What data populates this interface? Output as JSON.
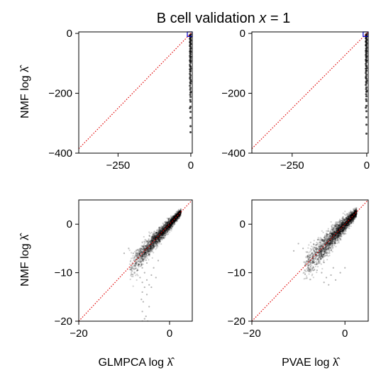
{
  "figure": {
    "title_prefix": "B cell validation ",
    "title_var": "x",
    "title_suffix": " = 1"
  },
  "chart_data": [
    {
      "type": "scatter",
      "panel": "top-left",
      "xlabel": "",
      "ylabel": "NMF log λ̂",
      "xlim": [
        -385,
        5
      ],
      "ylim": [
        -400,
        5
      ],
      "xticks": [
        -250,
        0
      ],
      "xtick_labels": [
        "−250",
        "0"
      ],
      "yticks": [
        0,
        -200,
        -400
      ],
      "ytick_labels": [
        "0",
        "−200",
        "−400"
      ],
      "diagonal": true,
      "inset_box": {
        "x": [
          -12,
          5
        ],
        "y": [
          -10,
          5
        ]
      },
      "points": [
        [
          -1,
          -10
        ],
        [
          -1,
          -20
        ],
        [
          -1,
          -32
        ],
        [
          -1,
          -45
        ],
        [
          -1,
          -58
        ],
        [
          -1,
          -70
        ],
        [
          -1,
          -85
        ],
        [
          -1,
          -98
        ],
        [
          -1,
          -112
        ],
        [
          -1,
          -125
        ],
        [
          -1,
          -140
        ],
        [
          -1,
          -155
        ],
        [
          -1,
          -168
        ],
        [
          -1,
          -182
        ],
        [
          -1,
          -198
        ],
        [
          -1,
          -212
        ],
        [
          -1,
          -228
        ],
        [
          -1,
          -245
        ],
        [
          -1,
          -262
        ],
        [
          -1,
          -282
        ],
        [
          -1,
          -310
        ],
        [
          -1,
          -330
        ],
        [
          -2,
          -5
        ],
        [
          -2,
          -15
        ],
        [
          -2,
          -26
        ],
        [
          -2,
          -38
        ],
        [
          -2,
          -52
        ],
        [
          -2,
          -66
        ],
        [
          -2,
          -80
        ],
        [
          -2,
          -94
        ],
        [
          -2,
          -110
        ],
        [
          -2,
          -128
        ],
        [
          -2,
          -146
        ],
        [
          -2,
          -164
        ],
        [
          -2,
          -188
        ],
        [
          -2,
          -205
        ],
        [
          -2,
          -222
        ],
        [
          -3,
          -8
        ],
        [
          -3,
          -18
        ],
        [
          -3,
          -30
        ],
        [
          -3,
          -42
        ],
        [
          -3,
          -60
        ],
        [
          -3,
          -75
        ],
        [
          -3,
          -90
        ],
        [
          -3,
          -105
        ],
        [
          -3,
          -120
        ],
        [
          -3,
          -135
        ],
        [
          -3,
          -150
        ],
        [
          -3,
          -175
        ],
        [
          -3,
          -250
        ],
        [
          0,
          -3
        ],
        [
          0,
          -12
        ],
        [
          0,
          -24
        ],
        [
          0,
          -36
        ],
        [
          0,
          -50
        ],
        [
          0,
          -62
        ],
        [
          0,
          -78
        ],
        [
          0,
          -92
        ],
        [
          0,
          -118
        ],
        [
          0,
          -160
        ],
        [
          0,
          -195
        ]
      ]
    },
    {
      "type": "scatter",
      "panel": "top-right",
      "xlabel": "",
      "ylabel": "",
      "xlim": [
        -385,
        5
      ],
      "ylim": [
        -400,
        5
      ],
      "xticks": [
        -250,
        0
      ],
      "xtick_labels": [
        "−250",
        "0"
      ],
      "yticks": [
        0,
        -200,
        -400
      ],
      "ytick_labels": [
        "0",
        "−200",
        "−400"
      ],
      "diagonal": true,
      "inset_box": {
        "x": [
          -12,
          5
        ],
        "y": [
          -10,
          5
        ]
      },
      "points": [
        [
          -1,
          -8
        ],
        [
          -1,
          -18
        ],
        [
          -1,
          -30
        ],
        [
          -1,
          -42
        ],
        [
          -1,
          -55
        ],
        [
          -1,
          -68
        ],
        [
          -1,
          -82
        ],
        [
          -1,
          -96
        ],
        [
          -1,
          -110
        ],
        [
          -1,
          -124
        ],
        [
          -1,
          -138
        ],
        [
          -1,
          -152
        ],
        [
          -1,
          -166
        ],
        [
          -1,
          -180
        ],
        [
          -1,
          -195
        ],
        [
          -1,
          -210
        ],
        [
          -1,
          -226
        ],
        [
          -1,
          -242
        ],
        [
          -1,
          -260
        ],
        [
          -1,
          -280
        ],
        [
          -1,
          -305
        ],
        [
          -1,
          -335
        ],
        [
          -2,
          -4
        ],
        [
          -2,
          -14
        ],
        [
          -2,
          -25
        ],
        [
          -2,
          -37
        ],
        [
          -2,
          -50
        ],
        [
          -2,
          -64
        ],
        [
          -2,
          -78
        ],
        [
          -2,
          -92
        ],
        [
          -2,
          -108
        ],
        [
          -2,
          -126
        ],
        [
          -2,
          -144
        ],
        [
          -2,
          -162
        ],
        [
          -2,
          -186
        ],
        [
          -2,
          -203
        ],
        [
          -2,
          -220
        ],
        [
          -3,
          -6
        ],
        [
          -3,
          -16
        ],
        [
          -3,
          -28
        ],
        [
          -3,
          -40
        ],
        [
          -3,
          -58
        ],
        [
          -3,
          -72
        ],
        [
          -3,
          -88
        ],
        [
          -3,
          -102
        ],
        [
          -3,
          -118
        ],
        [
          -3,
          -132
        ],
        [
          -3,
          -148
        ],
        [
          -3,
          -172
        ],
        [
          -3,
          -248
        ],
        [
          0,
          -2
        ],
        [
          0,
          -10
        ],
        [
          0,
          -22
        ],
        [
          0,
          -34
        ],
        [
          0,
          -48
        ],
        [
          0,
          -60
        ],
        [
          0,
          -76
        ],
        [
          0,
          -90
        ],
        [
          0,
          -116
        ],
        [
          0,
          -158
        ],
        [
          0,
          -192
        ]
      ]
    },
    {
      "type": "scatter",
      "panel": "bottom-left",
      "xlabel": "GLMPCA log λ̂",
      "ylabel": "NMF log λ̂",
      "xlim": [
        -20,
        5
      ],
      "ylim": [
        -20,
        5
      ],
      "xticks": [
        -20,
        0
      ],
      "xtick_labels": [
        "−20",
        "0"
      ],
      "yticks": [
        0,
        -10,
        -20
      ],
      "ytick_labels": [
        "0",
        "−10",
        "−20"
      ],
      "diagonal": true,
      "cloud": {
        "x_range": [
          -9,
          2.5
        ],
        "spread": 1.2
      },
      "outliers": [
        [
          -6,
          -9
        ],
        [
          -5.5,
          -10
        ],
        [
          -6.5,
          -11
        ],
        [
          -5,
          -11.5
        ],
        [
          -6,
          -12
        ],
        [
          -4.5,
          -12.5
        ],
        [
          -5.5,
          -13
        ],
        [
          -6,
          -14
        ],
        [
          -5,
          -14.5
        ],
        [
          -4,
          -13
        ],
        [
          -6.2,
          -15.5
        ],
        [
          -5.8,
          -16
        ],
        [
          -4.5,
          -17
        ],
        [
          -6,
          -18
        ],
        [
          -5.2,
          -19
        ],
        [
          -5.5,
          -19.5
        ],
        [
          -6,
          -20
        ],
        [
          -4.8,
          -20
        ],
        [
          -3.5,
          -9
        ],
        [
          -4,
          -10.5
        ],
        [
          -7,
          -9.5
        ],
        [
          -3,
          -11
        ],
        [
          -5,
          -8
        ],
        [
          -2.5,
          -7.5
        ],
        [
          -8,
          -6
        ],
        [
          -9,
          -5
        ],
        [
          -10,
          -6
        ],
        [
          -7.5,
          -8
        ]
      ]
    },
    {
      "type": "scatter",
      "panel": "bottom-right",
      "xlabel": "PVAE log λ̂",
      "ylabel": "",
      "xlim": [
        -20,
        5
      ],
      "ylim": [
        -20,
        5
      ],
      "xticks": [
        -20,
        0
      ],
      "xtick_labels": [
        "−20",
        "0"
      ],
      "yticks": [
        0,
        -10,
        -20
      ],
      "ytick_labels": [
        "0",
        "−10",
        "−20"
      ],
      "diagonal": true,
      "cloud": {
        "x_range": [
          -9,
          2.5
        ],
        "spread": 1.6
      },
      "outliers": [
        [
          -5,
          -10
        ],
        [
          -4,
          -11
        ],
        [
          -3,
          -10.5
        ],
        [
          -6,
          -9.5
        ],
        [
          -2.5,
          -9
        ],
        [
          -7,
          -8
        ],
        [
          -4.5,
          -12
        ],
        [
          -3.5,
          -12.5
        ],
        [
          -9,
          -5
        ],
        [
          -10,
          -4
        ],
        [
          -11,
          -5.5
        ],
        [
          -8,
          -6.5
        ],
        [
          -1,
          -10
        ],
        [
          0,
          -9
        ],
        [
          -2,
          -11.5
        ]
      ]
    }
  ]
}
